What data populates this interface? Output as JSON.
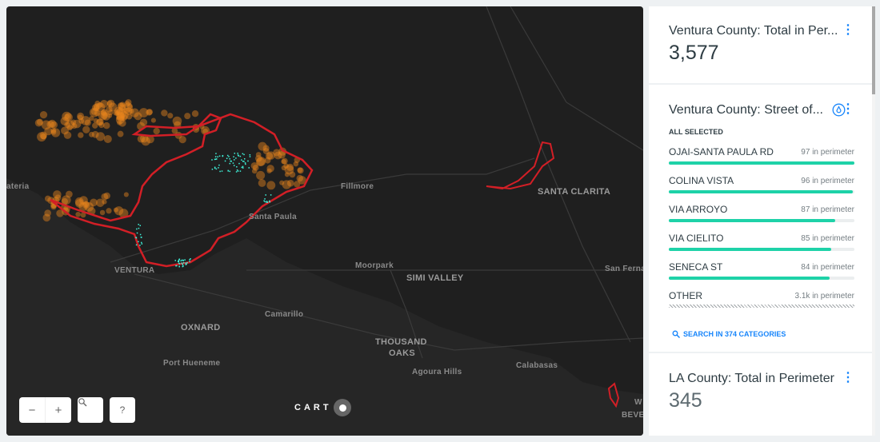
{
  "map": {
    "labels": {
      "carpinteria": "ateria",
      "fillmore": "Fillmore",
      "santa_paula": "Santa Paula",
      "ventura": "VENTURA",
      "santa_clarita": "SANTA CLARITA",
      "moorpark": "Moorpark",
      "simi_valley": "SIMI VALLEY",
      "san_fernando": "San Ferna",
      "camarillo": "Camarillo",
      "oxnard": "OXNARD",
      "thousand_oaks_1": "THOUSAND",
      "thousand_oaks_2": "OAKS",
      "agoura_hills": "Agoura Hills",
      "calabasas": "Calabasas",
      "port_hueneme": "Port Hueneme",
      "beverly_1": "W",
      "beverly_2": "BEVE"
    },
    "controls": {
      "zoom_out": "−",
      "zoom_in": "+",
      "search_icon": "search-icon",
      "help": "?"
    },
    "attribution": "CART",
    "colors": {
      "perimeter": "#d21f26",
      "hotspots": "#e8861c",
      "structures": "#3ff5dc",
      "background": "#1f1f1f"
    }
  },
  "widgets": [
    {
      "title": "Ventura County: Total in Per...",
      "value": "3,577"
    },
    {
      "title": "Ventura County: Street of...",
      "status": "ALL SELECTED",
      "categories": [
        {
          "name": "OJAI-SANTA PAULA RD",
          "value": "97 in perimeter",
          "fraction": 1.0
        },
        {
          "name": "COLINA VISTA",
          "value": "96 in perimeter",
          "fraction": 0.99
        },
        {
          "name": "VIA ARROYO",
          "value": "87 in perimeter",
          "fraction": 0.897
        },
        {
          "name": "VIA CIELITO",
          "value": "85 in perimeter",
          "fraction": 0.876
        },
        {
          "name": "SENECA ST",
          "value": "84 in perimeter",
          "fraction": 0.866
        },
        {
          "name": "OTHER",
          "value": "3.1k in perimeter"
        }
      ],
      "search_label": "SEARCH IN 374 CATEGORIES"
    },
    {
      "title": "LA County: Total in Perimeter",
      "value": "345"
    }
  ],
  "menu_glyph": "⋮"
}
